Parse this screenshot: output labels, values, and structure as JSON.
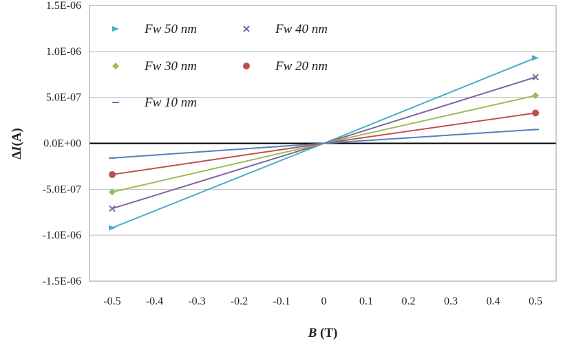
{
  "chart_data": {
    "type": "line",
    "title": "",
    "xlabel": {
      "var": "B",
      "unit": " (T)"
    },
    "ylabel": {
      "delta": "Δ",
      "var": "I",
      "unit": "(A)"
    },
    "xlim": [
      -0.5,
      0.5
    ],
    "ylim": [
      -1.5e-06,
      1.5e-06
    ],
    "xticks": [
      "-0.5",
      "-0.4",
      "-0.3",
      "-0.2",
      "-0.1",
      "0",
      "0.1",
      "0.2",
      "0.3",
      "0.4",
      "0.5"
    ],
    "yticks": [
      "1.5E-06",
      "1.0E-06",
      "5.0E-07",
      "0.0E+00",
      "-5.0E-07",
      "-1.0E-06",
      "-1.5E-06"
    ],
    "grid": true,
    "legend_placement": "top-left",
    "series": [
      {
        "name": "Fw 50 nm",
        "color": "#4bacc6",
        "marker": "triangle",
        "x": [
          -0.5,
          0,
          0.5
        ],
        "y": [
          -9.2e-07,
          0,
          9.3e-07
        ]
      },
      {
        "name": "Fw 40 nm",
        "color": "#8064a2",
        "marker": "x",
        "x": [
          -0.5,
          0,
          0.5
        ],
        "y": [
          -7.1e-07,
          0,
          7.2e-07
        ]
      },
      {
        "name": "Fw 30 nm",
        "color": "#9bbb59",
        "marker": "diamond",
        "x": [
          -0.5,
          0,
          0.5
        ],
        "y": [
          -5.3e-07,
          0,
          5.2e-07
        ]
      },
      {
        "name": "Fw 20 nm",
        "color": "#c0504d",
        "marker": "circle",
        "x": [
          -0.5,
          0,
          0.5
        ],
        "y": [
          -3.4e-07,
          0,
          3.3e-07
        ]
      },
      {
        "name": "Fw 10 nm",
        "color": "#4f81bd",
        "marker": "dash",
        "x": [
          -0.5,
          0,
          0.5
        ],
        "y": [
          -1.6e-07,
          0,
          1.5e-07
        ]
      }
    ]
  }
}
